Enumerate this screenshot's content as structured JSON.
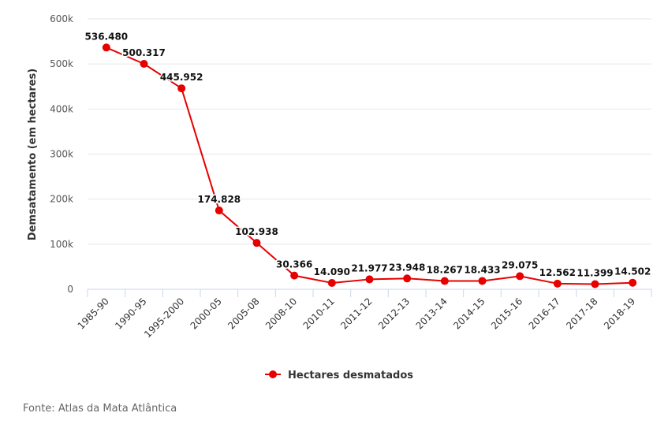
{
  "chart_data": {
    "type": "line",
    "ylabel": "Demsatamento (em hectares)",
    "xlabel": "",
    "categories": [
      "1985-90",
      "1990-95",
      "1995-2000",
      "2000-05",
      "2005-08",
      "2008-10",
      "2010-11",
      "2011-12",
      "2012-13",
      "2013-14",
      "2014-15",
      "2015-16",
      "2016-17",
      "2017-18",
      "2018-19"
    ],
    "series": [
      {
        "name": "Hectares desmatados",
        "values": [
          536480,
          500317,
          445952,
          174828,
          102938,
          30366,
          14090,
          21977,
          23948,
          18267,
          18433,
          29075,
          12562,
          11399,
          14502
        ],
        "labels": [
          "536.480",
          "500.317",
          "445.952",
          "174.828",
          "102.938",
          "30.366",
          "14.090",
          "21.977",
          "23.948",
          "18.267",
          "18.433",
          "29.075",
          "12.562",
          "11.399",
          "14.502"
        ],
        "color": "#e60000"
      }
    ],
    "ylim": [
      0,
      600000
    ],
    "yticks": [
      {
        "value": 0,
        "label": "0"
      },
      {
        "value": 100000,
        "label": "100k"
      },
      {
        "value": 200000,
        "label": "200k"
      },
      {
        "value": 300000,
        "label": "300k"
      },
      {
        "value": 400000,
        "label": "400k"
      },
      {
        "value": 500000,
        "label": "500k"
      },
      {
        "value": 600000,
        "label": "600k"
      }
    ],
    "grid": "horizontal",
    "legend_position": "bottom-center"
  },
  "source_text": "Fonte: Atlas da Mata Atlântica"
}
